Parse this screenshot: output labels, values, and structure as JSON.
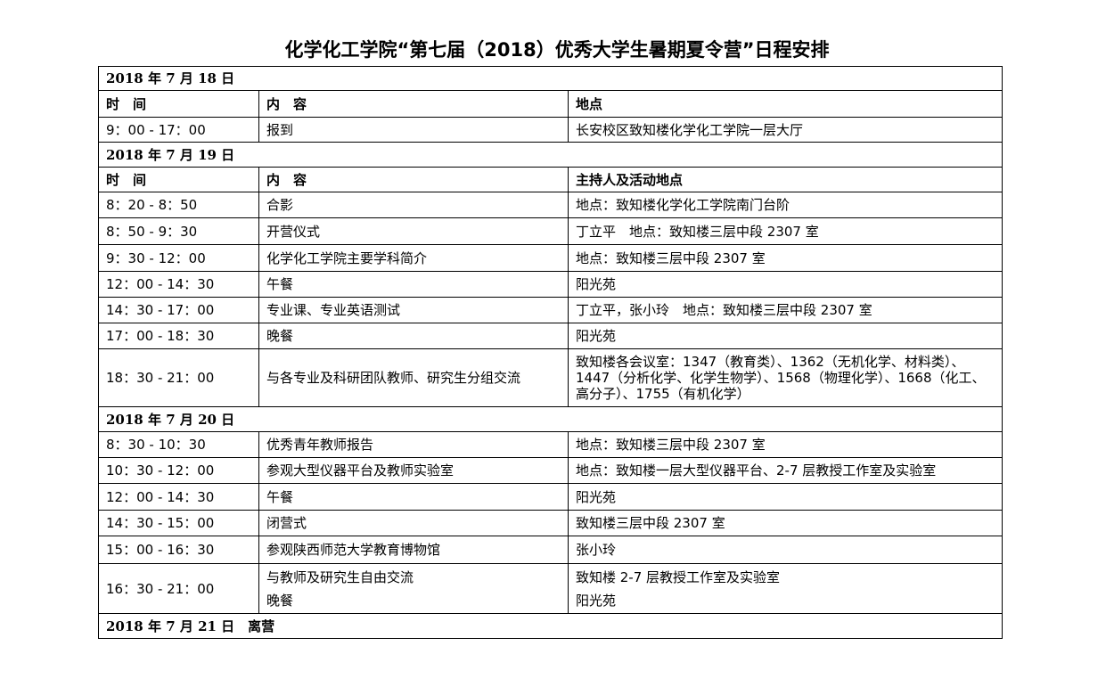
{
  "title": "化学化工学院“第七届（2018）优秀大学生暑期夏令营”日程安排",
  "table": {
    "rows": [
      [
        "2018 年 7 月 18 日"
      ],
      [
        "时　间",
        "内　容",
        "地点"
      ],
      [
        "9：00 - 17：00",
        "报到",
        "长安校区致知楼化学化工学院一层大厅"
      ],
      [
        "2018 年 7 月 19 日"
      ],
      [
        "时　间",
        "内　容",
        "主持人及活动地点"
      ],
      [
        "8：20 - 8：50",
        "合影",
        "地点：致知楼化学化工学院南门台阶"
      ],
      [
        "8：50 - 9：30",
        "开营仪式",
        "丁立平　地点：致知楼三层中段 2307 室"
      ],
      [
        "9：30 - 12：00",
        "化学化工学院主要学科简介",
        "地点：致知楼三层中段 2307 室"
      ],
      [
        "12：00 - 14：30",
        "午餐",
        "阳光苑"
      ],
      [
        "14：30 - 17：00",
        "专业课、专业英语测试",
        "丁立平，张小玲　地点：致知楼三层中段 2307 室"
      ],
      [
        "17：00 - 18：30",
        "晚餐",
        "阳光苑"
      ],
      [
        "18：30 - 21：00",
        "与各专业及科研团队教师、研究生分组交流",
        "致知楼各会议室：1347（教育类）、1362（无机化学、材料类）、1447（分析化学、化学生物学）、1568（物理化学）、1668（化工、高分子）、1755（有机化学）"
      ],
      [
        "2018 年 7 月 20 日"
      ],
      [
        "8：30 - 10：30",
        "优秀青年教师报告",
        "地点：致知楼三层中段 2307 室"
      ],
      [
        "10：30 - 12：00",
        "参观大型仪器平台及教师实验室",
        "地点：致知楼一层大型仪器平台、2-7 层教授工作室及实验室"
      ],
      [
        "12：00 - 14：30",
        "午餐",
        "阳光苑"
      ],
      [
        "14：30 - 15：00",
        "闭营式",
        "致知楼三层中段 2307 室"
      ],
      [
        "15：00 - 16：30",
        "参观陕西师范大学教育博物馆",
        "张小玲"
      ],
      [
        "16：30 - 21：00",
        [
          "与教师及研究生自由交流",
          "晚餐"
        ],
        [
          "致知楼 2-7 层教授工作室及实验室",
          "阳光苑"
        ]
      ],
      [
        "2018 年 7 月 21 日　离营"
      ]
    ]
  }
}
